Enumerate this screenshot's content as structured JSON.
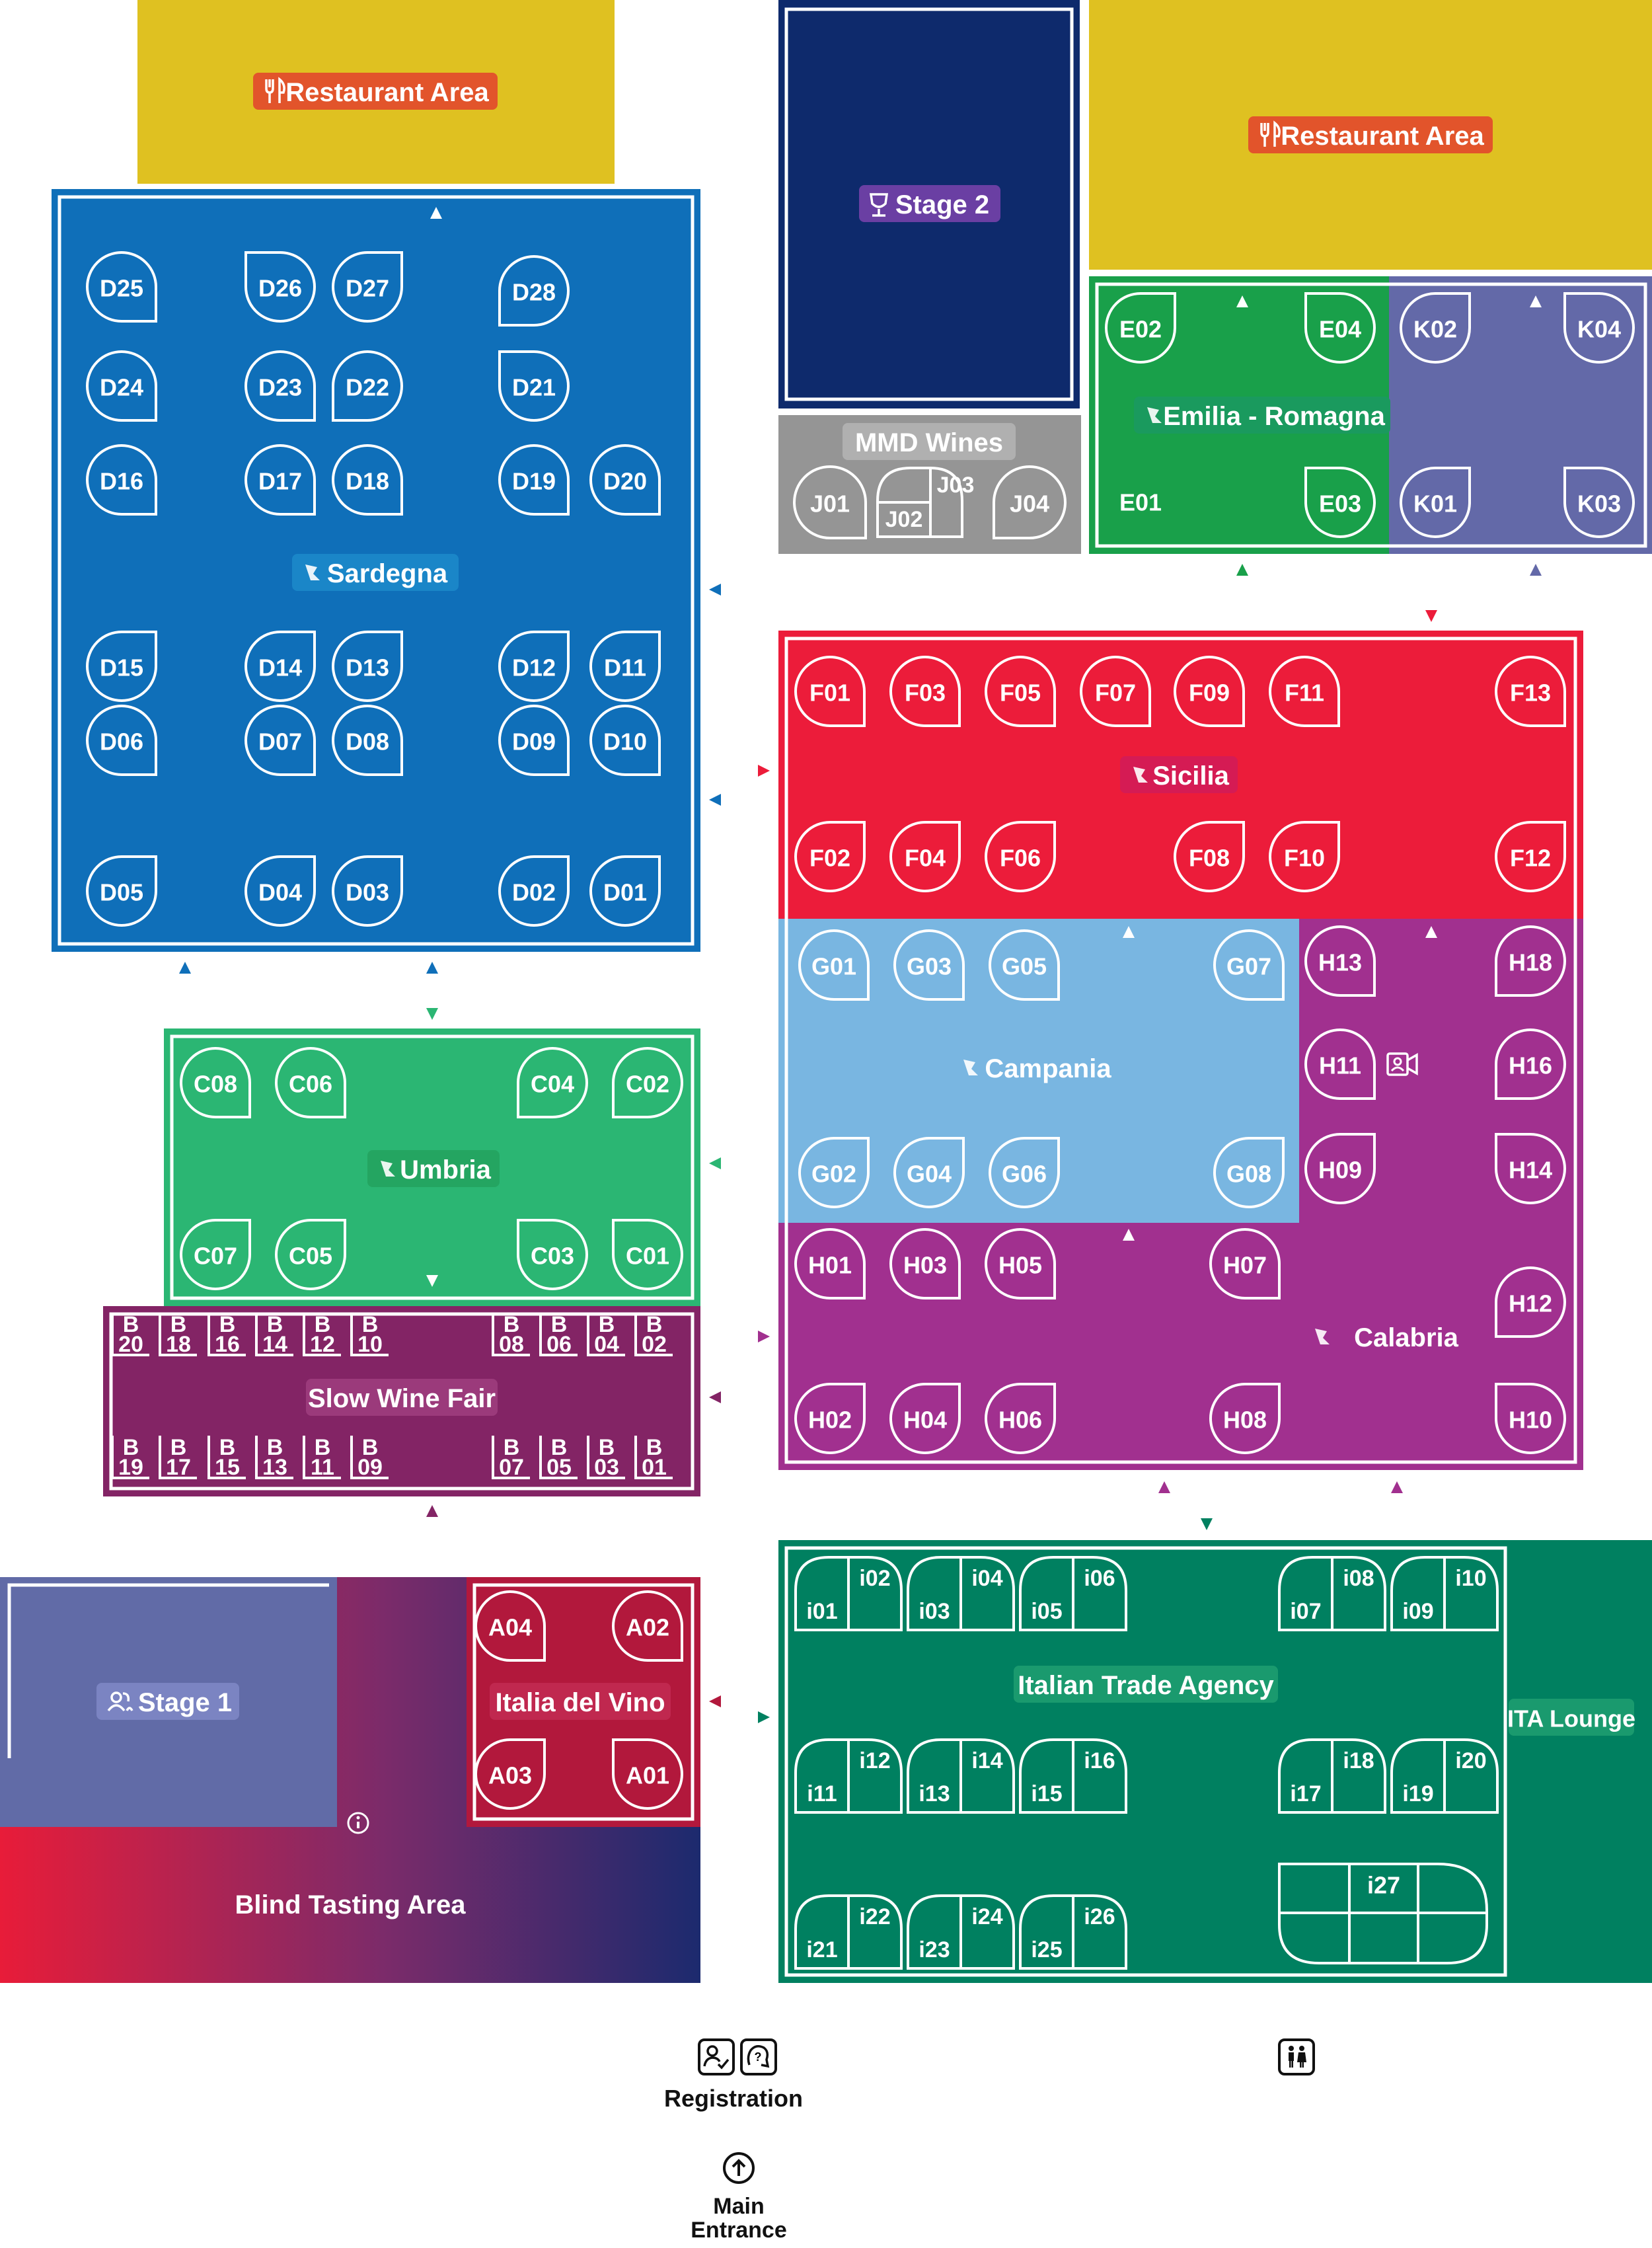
{
  "colors": {
    "sardegna": "#0f6fb9",
    "umbria": "#2bb673",
    "slow": "#832465",
    "sicilia": "#ec1c3a",
    "campania": "#79b6e1",
    "calabria": "#a1308f",
    "emilia": "#19a04a",
    "marche_k": "#6369a8",
    "stage2": "#0e2a6c",
    "mmd": "#959595",
    "restaurant": "#dfc121",
    "restaurant_label": "#e2542b",
    "trade": "#008060",
    "italia": "#b2183c",
    "stage1": "#616ba7"
  },
  "zones": {
    "restaurant_left": "Restaurant Area",
    "restaurant_right": "Restaurant Area",
    "stage2": "Stage 2",
    "mmd": "MMD Wines",
    "emilia": "Emilia - Romagna",
    "sardegna": "Sardegna",
    "sicilia": "Sicilia",
    "campania": "Campania",
    "calabria": "Calabria",
    "umbria": "Umbria",
    "slow": "Slow Wine Fair",
    "trade": "Italian Trade Agency",
    "ita_lounge": "ITA Lounge",
    "stage1": "Stage 1",
    "italia": "Italia del Vino",
    "blind": "Blind Tasting Area"
  },
  "booths": {
    "D": [
      "D25",
      "D26",
      "D27",
      "D28",
      "D24",
      "D23",
      "D22",
      "D21",
      "D16",
      "D17",
      "D18",
      "D19",
      "D20",
      "D15",
      "D14",
      "D13",
      "D12",
      "D11",
      "D06",
      "D07",
      "D08",
      "D09",
      "D10",
      "D05",
      "D04",
      "D03",
      "D02",
      "D01"
    ],
    "J": [
      "J01",
      "J02",
      "J03",
      "J04"
    ],
    "E": [
      "E02",
      "E04",
      "E01",
      "E03"
    ],
    "K": [
      "K02",
      "K04",
      "K01",
      "K03"
    ],
    "F": [
      "F01",
      "F03",
      "F05",
      "F07",
      "F09",
      "F11",
      "F13",
      "F02",
      "F04",
      "F06",
      "F08",
      "F10",
      "F12"
    ],
    "G": [
      "G01",
      "G03",
      "G05",
      "G07",
      "G02",
      "G04",
      "G06",
      "G08"
    ],
    "H": [
      "H13",
      "H18",
      "H11",
      "H16",
      "H09",
      "H14",
      "H01",
      "H03",
      "H05",
      "H07",
      "H12",
      "H02",
      "H04",
      "H06",
      "H08",
      "H10"
    ],
    "C": [
      "C08",
      "C06",
      "C04",
      "C02",
      "C07",
      "C05",
      "C03",
      "C01"
    ],
    "B_top": [
      [
        "B",
        "20"
      ],
      [
        "B",
        "18"
      ],
      [
        "B",
        "16"
      ],
      [
        "B",
        "14"
      ],
      [
        "B",
        "12"
      ],
      [
        "B",
        "10"
      ],
      [
        "B",
        "08"
      ],
      [
        "B",
        "06"
      ],
      [
        "B",
        "04"
      ],
      [
        "B",
        "02"
      ]
    ],
    "B_bottom": [
      [
        "B",
        "19"
      ],
      [
        "B",
        "17"
      ],
      [
        "B",
        "15"
      ],
      [
        "B",
        "13"
      ],
      [
        "B",
        "11"
      ],
      [
        "B",
        "09"
      ],
      [
        "B",
        "07"
      ],
      [
        "B",
        "05"
      ],
      [
        "B",
        "03"
      ],
      [
        "B",
        "01"
      ]
    ],
    "A": [
      "A04",
      "A02",
      "A03",
      "A01"
    ],
    "I": [
      "i01",
      "i02",
      "i03",
      "i04",
      "i05",
      "i06",
      "i07",
      "i08",
      "i09",
      "i10",
      "i11",
      "i12",
      "i13",
      "i14",
      "i15",
      "i16",
      "i17",
      "i18",
      "i19",
      "i20",
      "i21",
      "i22",
      "i23",
      "i24",
      "i25",
      "i26",
      "i27"
    ]
  },
  "footer": {
    "registration": "Registration",
    "main_entrance_line1": "Main",
    "main_entrance_line2": "Entrance"
  },
  "icons": [
    "fork-knife-icon",
    "wine-glass-icon",
    "italy-region-icon",
    "people-icon",
    "info-icon",
    "video-icon",
    "registration-icon",
    "help-icon",
    "main-entrance-icon",
    "restroom-icon"
  ]
}
